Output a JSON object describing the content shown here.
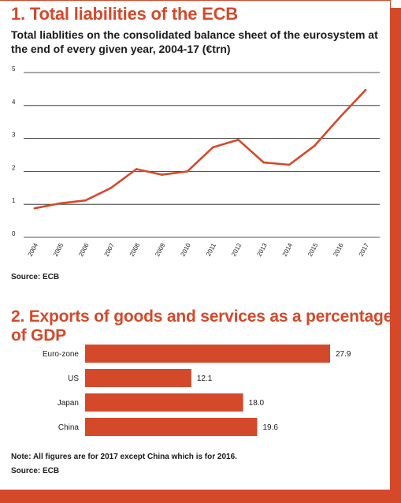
{
  "colors": {
    "accent": "#d4492a",
    "line": "#d4492a",
    "bar": "#d4492a",
    "grid": "#1a1a1a"
  },
  "chart1": {
    "title": "1. Total liabilities of the ECB",
    "subtitle": "Total liablities on the consolidated balance sheet of the eurosystem at the end of every given year, 2004-17 (€trn)",
    "source": "Source: ECB"
  },
  "chart2": {
    "title": "2. Exports of goods and services as a percentage of GDP",
    "note": "Note: All figures are for 2017 except China which is for 2016.",
    "source": "Source: ECB"
  },
  "chart_data": [
    {
      "type": "line",
      "title": "1. Total liabilities of the ECB",
      "subtitle": "Total liablities on the consolidated balance sheet of the eurosystem at the end of every given year, 2004-17 (€trn)",
      "x": [
        "2004",
        "2005",
        "2006",
        "2007",
        "2008",
        "2009",
        "2010",
        "2011",
        "2012",
        "2013",
        "2014",
        "2015",
        "2016",
        "2017"
      ],
      "values": [
        0.88,
        1.03,
        1.12,
        1.5,
        2.07,
        1.9,
        2.0,
        2.73,
        2.96,
        2.27,
        2.2,
        2.78,
        3.65,
        4.47
      ],
      "yticks": [
        0,
        1,
        2,
        3,
        4,
        5
      ],
      "ylim": [
        0,
        5
      ],
      "grid": true,
      "source": "Source: ECB"
    },
    {
      "type": "bar",
      "orientation": "horizontal",
      "title": "2. Exports of goods and services as a percentage of GDP",
      "categories": [
        "Euro-zone",
        "US",
        "Japan",
        "China"
      ],
      "values": [
        27.9,
        12.1,
        18.0,
        19.6
      ],
      "value_labels": [
        "27.9",
        "12.1",
        "18.0",
        "19.6"
      ],
      "note": "Note: All figures are for 2017 except China which is for 2016.",
      "source": "Source: ECB"
    }
  ]
}
